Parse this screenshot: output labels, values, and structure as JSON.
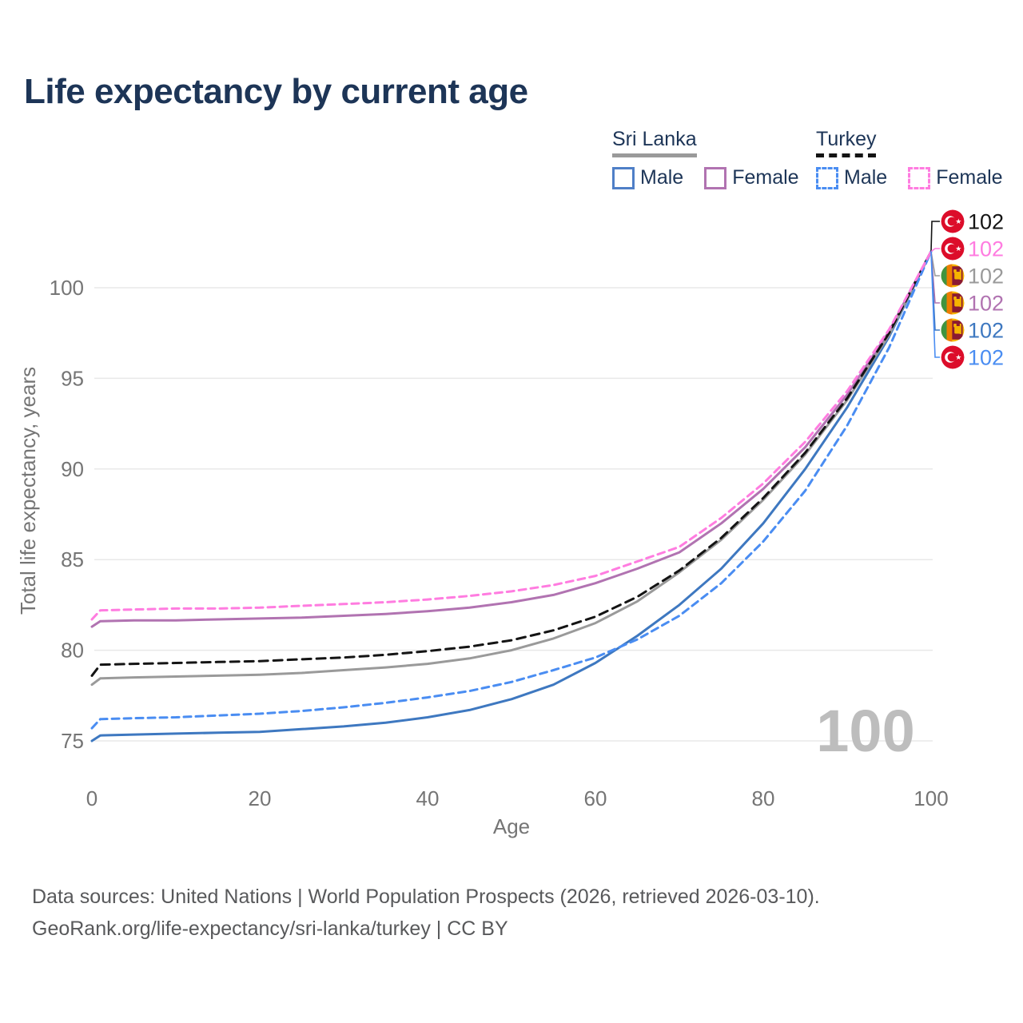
{
  "title": "Life expectancy by current age",
  "watermark": "100",
  "legend": {
    "groups": [
      {
        "name": "Sri Lanka",
        "line_style": "solid",
        "line_color": "#9a9a9a",
        "items": [
          {
            "label": "Male",
            "color": "#4f7fc7",
            "style": "solid"
          },
          {
            "label": "Female",
            "color": "#b173b1",
            "style": "solid"
          }
        ]
      },
      {
        "name": "Turkey",
        "line_style": "dashed",
        "line_color": "#141414",
        "items": [
          {
            "label": "Male",
            "color": "#4a8df2",
            "style": "dashed"
          },
          {
            "label": "Female",
            "color": "#ff7ce0",
            "style": "dashed"
          }
        ]
      }
    ]
  },
  "footer": {
    "line1": "Data sources: United Nations | World Population Prospects (2026, retrieved 2026-03-10).",
    "line2": "GeoRank.org/life-expectancy/sri-lanka/turkey | CC BY"
  },
  "chart_data": {
    "type": "line",
    "title": "Life expectancy by current age",
    "xlabel": "Age",
    "ylabel": "Total life expectancy, years",
    "xlim": [
      0,
      100
    ],
    "ylim": [
      75,
      102
    ],
    "xticks": [
      0,
      20,
      40,
      60,
      80,
      100
    ],
    "yticks": [
      75,
      80,
      85,
      90,
      95,
      100
    ],
    "grid": "horizontal",
    "legend_position": "top-right",
    "series": [
      {
        "id": "sri-lanka-male",
        "name": "Sri Lanka Male",
        "color": "#3e78c0",
        "dash": null,
        "points": [
          [
            0,
            75.0
          ],
          [
            1,
            75.3
          ],
          [
            5,
            75.35
          ],
          [
            10,
            75.4
          ],
          [
            15,
            75.45
          ],
          [
            20,
            75.5
          ],
          [
            25,
            75.65
          ],
          [
            30,
            75.8
          ],
          [
            35,
            76.0
          ],
          [
            40,
            76.3
          ],
          [
            45,
            76.7
          ],
          [
            50,
            77.3
          ],
          [
            55,
            78.1
          ],
          [
            60,
            79.3
          ],
          [
            65,
            80.8
          ],
          [
            70,
            82.5
          ],
          [
            75,
            84.5
          ],
          [
            80,
            87.0
          ],
          [
            85,
            90.0
          ],
          [
            90,
            93.4
          ],
          [
            95,
            97.3
          ],
          [
            100,
            102
          ]
        ]
      },
      {
        "id": "sri-lanka-female",
        "name": "Sri Lanka Female",
        "color": "#b173b1",
        "dash": null,
        "points": [
          [
            0,
            81.3
          ],
          [
            1,
            81.6
          ],
          [
            5,
            81.65
          ],
          [
            10,
            81.65
          ],
          [
            15,
            81.7
          ],
          [
            20,
            81.75
          ],
          [
            25,
            81.8
          ],
          [
            30,
            81.9
          ],
          [
            35,
            82.0
          ],
          [
            40,
            82.15
          ],
          [
            45,
            82.35
          ],
          [
            50,
            82.65
          ],
          [
            55,
            83.05
          ],
          [
            60,
            83.7
          ],
          [
            65,
            84.5
          ],
          [
            70,
            85.4
          ],
          [
            75,
            87.0
          ],
          [
            80,
            88.9
          ],
          [
            85,
            91.2
          ],
          [
            90,
            94.1
          ],
          [
            95,
            97.6
          ],
          [
            100,
            102
          ]
        ]
      },
      {
        "id": "sri-lanka-both",
        "name": "Sri Lanka",
        "color": "#9a9a9a",
        "dash": null,
        "points": [
          [
            0,
            78.1
          ],
          [
            1,
            78.45
          ],
          [
            5,
            78.5
          ],
          [
            10,
            78.55
          ],
          [
            15,
            78.6
          ],
          [
            20,
            78.65
          ],
          [
            25,
            78.75
          ],
          [
            30,
            78.9
          ],
          [
            35,
            79.05
          ],
          [
            40,
            79.25
          ],
          [
            45,
            79.55
          ],
          [
            50,
            80.0
          ],
          [
            55,
            80.65
          ],
          [
            60,
            81.5
          ],
          [
            65,
            82.7
          ],
          [
            70,
            84.3
          ],
          [
            75,
            86.1
          ],
          [
            80,
            88.3
          ],
          [
            85,
            90.8
          ],
          [
            90,
            93.8
          ],
          [
            95,
            97.4
          ],
          [
            100,
            102
          ]
        ]
      },
      {
        "id": "turkey-both",
        "name": "Turkey",
        "color": "#141414",
        "dash": "11 7",
        "points": [
          [
            0,
            78.6
          ],
          [
            1,
            79.2
          ],
          [
            5,
            79.25
          ],
          [
            10,
            79.3
          ],
          [
            15,
            79.35
          ],
          [
            20,
            79.4
          ],
          [
            25,
            79.5
          ],
          [
            30,
            79.6
          ],
          [
            35,
            79.75
          ],
          [
            40,
            79.95
          ],
          [
            45,
            80.2
          ],
          [
            50,
            80.55
          ],
          [
            55,
            81.1
          ],
          [
            60,
            81.85
          ],
          [
            65,
            82.95
          ],
          [
            70,
            84.4
          ],
          [
            75,
            86.2
          ],
          [
            80,
            88.4
          ],
          [
            85,
            90.9
          ],
          [
            90,
            93.9
          ],
          [
            95,
            97.5
          ],
          [
            100,
            102
          ]
        ]
      },
      {
        "id": "turkey-male",
        "name": "Turkey Male",
        "color": "#4a8df2",
        "dash": "9 6",
        "points": [
          [
            0,
            75.7
          ],
          [
            1,
            76.2
          ],
          [
            5,
            76.25
          ],
          [
            10,
            76.3
          ],
          [
            15,
            76.4
          ],
          [
            20,
            76.5
          ],
          [
            25,
            76.65
          ],
          [
            30,
            76.85
          ],
          [
            35,
            77.1
          ],
          [
            40,
            77.4
          ],
          [
            45,
            77.75
          ],
          [
            50,
            78.25
          ],
          [
            55,
            78.9
          ],
          [
            60,
            79.6
          ],
          [
            65,
            80.6
          ],
          [
            70,
            81.9
          ],
          [
            75,
            83.7
          ],
          [
            80,
            86.0
          ],
          [
            85,
            88.8
          ],
          [
            90,
            92.4
          ],
          [
            95,
            96.7
          ],
          [
            100,
            102
          ]
        ]
      },
      {
        "id": "turkey-female",
        "name": "Turkey Female",
        "color": "#ff7ce0",
        "dash": "9 6",
        "points": [
          [
            0,
            81.7
          ],
          [
            1,
            82.2
          ],
          [
            5,
            82.25
          ],
          [
            10,
            82.3
          ],
          [
            15,
            82.3
          ],
          [
            20,
            82.35
          ],
          [
            25,
            82.45
          ],
          [
            30,
            82.55
          ],
          [
            35,
            82.65
          ],
          [
            40,
            82.8
          ],
          [
            45,
            83.0
          ],
          [
            50,
            83.25
          ],
          [
            55,
            83.6
          ],
          [
            60,
            84.1
          ],
          [
            65,
            84.9
          ],
          [
            70,
            85.7
          ],
          [
            75,
            87.3
          ],
          [
            80,
            89.2
          ],
          [
            85,
            91.5
          ],
          [
            90,
            94.3
          ],
          [
            95,
            97.7
          ],
          [
            100,
            102
          ]
        ]
      }
    ],
    "end_labels": [
      {
        "flag": "turkey",
        "value": "102",
        "color": "#141414"
      },
      {
        "flag": "turkey",
        "value": "102",
        "color": "#ff7ce0"
      },
      {
        "flag": "sri-lanka",
        "value": "102",
        "color": "#9a9a9a"
      },
      {
        "flag": "sri-lanka",
        "value": "102",
        "color": "#b173b1"
      },
      {
        "flag": "sri-lanka",
        "value": "102",
        "color": "#3e78c0"
      },
      {
        "flag": "turkey",
        "value": "102",
        "color": "#4a8df2"
      }
    ]
  }
}
